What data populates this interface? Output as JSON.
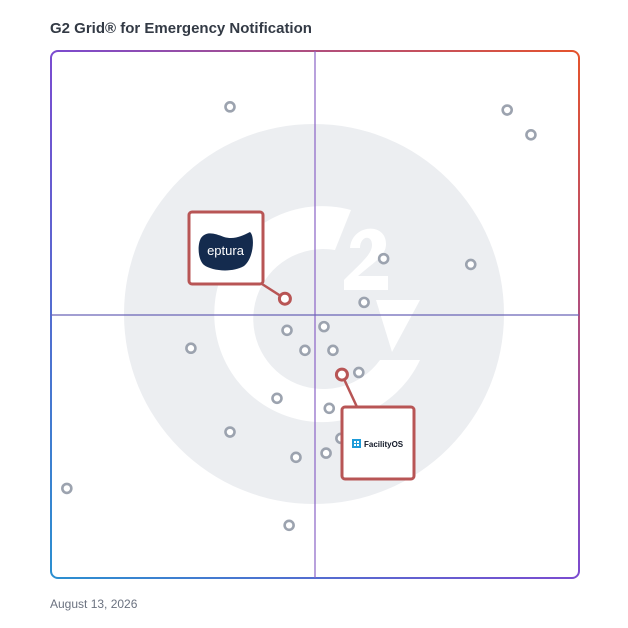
{
  "title": "G2 Grid® for Emergency Notification",
  "date": "August 13, 2026",
  "colors": {
    "frame_gradient": [
      "#2b8fd0",
      "#7b4bd0",
      "#e5532c"
    ],
    "dot": "#9ca3af",
    "highlight": "#b85555",
    "watermark": "#eceef1",
    "eptura_logo": "#142b4e",
    "facilityos_icon": "#1d9bd8"
  },
  "chart_data": {
    "type": "scatter",
    "title": "G2 Grid® for Emergency Notification",
    "xlabel": "",
    "ylabel": "",
    "xlim": [
      0,
      1
    ],
    "ylim": [
      0,
      1
    ],
    "quadrant_split": {
      "x": 0.5,
      "y": 0.5
    },
    "grid": false,
    "points": [
      {
        "x": 0.339,
        "y": 0.894
      },
      {
        "x": 0.864,
        "y": 0.888
      },
      {
        "x": 0.909,
        "y": 0.841
      },
      {
        "x": 0.63,
        "y": 0.606
      },
      {
        "x": 0.795,
        "y": 0.595
      },
      {
        "x": 0.593,
        "y": 0.523
      },
      {
        "x": 0.517,
        "y": 0.477
      },
      {
        "x": 0.447,
        "y": 0.47
      },
      {
        "x": 0.265,
        "y": 0.436
      },
      {
        "x": 0.481,
        "y": 0.432
      },
      {
        "x": 0.534,
        "y": 0.432
      },
      {
        "x": 0.583,
        "y": 0.39
      },
      {
        "x": 0.428,
        "y": 0.341
      },
      {
        "x": 0.527,
        "y": 0.322
      },
      {
        "x": 0.339,
        "y": 0.277
      },
      {
        "x": 0.549,
        "y": 0.265
      },
      {
        "x": 0.464,
        "y": 0.229
      },
      {
        "x": 0.521,
        "y": 0.237
      },
      {
        "x": 0.03,
        "y": 0.17
      },
      {
        "x": 0.451,
        "y": 0.1
      }
    ],
    "highlighted": [
      {
        "name": "eptura",
        "x": 0.443,
        "y": 0.53
      },
      {
        "name": "FacilityOS",
        "x": 0.551,
        "y": 0.386
      }
    ]
  },
  "vendors": {
    "eptura": {
      "label": "eptura",
      "logo_icon": "eptura-blob-icon"
    },
    "facilityos": {
      "label": "FacilityOS",
      "logo_icon": "facilityos-building-icon"
    }
  }
}
